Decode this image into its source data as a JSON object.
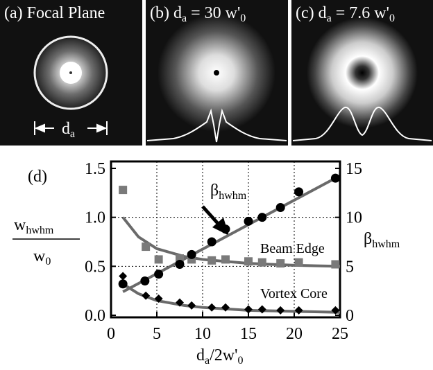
{
  "panels": [
    {
      "label": "(a)",
      "text": "Focal Plane",
      "da": "d",
      "da_sub": "a"
    },
    {
      "label": "(b)",
      "lhs": "d",
      "lhs_sub": "a",
      "rhs": "= 30 w'",
      "rhs_sub": "0"
    },
    {
      "label": "(c)",
      "lhs": "d",
      "lhs_sub": "a",
      "rhs": "= 7.6 w'",
      "rhs_sub": "0"
    }
  ],
  "chart_data": {
    "type": "scatter",
    "panel_label": "(d)",
    "y_label": {
      "numerator": "w",
      "numerator_sub": "hwhm",
      "denominator": "w",
      "denominator_sub": "0"
    },
    "y2_label": {
      "main": "β",
      "sub": "hwhm"
    },
    "x_label": {
      "main": "d",
      "sub": "a",
      "rest": "/2w'",
      "rest_sub": "0"
    },
    "xlim": [
      0,
      25
    ],
    "xticks": [
      0,
      5,
      10,
      15,
      20,
      25
    ],
    "ylim": [
      0,
      1.5
    ],
    "yticks": [
      {
        "value": 0,
        "label": "0.0"
      },
      {
        "value": 0.5,
        "label": "0.5"
      },
      {
        "value": 1,
        "label": "1.0"
      },
      {
        "value": 1.5,
        "label": "1.5"
      }
    ],
    "y2lim": [
      0,
      15
    ],
    "y2ticks": [
      0,
      5,
      10,
      15
    ],
    "grid": true,
    "series": [
      {
        "marker": "square",
        "color": "#7a7a7a",
        "x": [
          1.3,
          3.8,
          5.2,
          7.5,
          8.8,
          11,
          12.5,
          15,
          16.5,
          18.5,
          20.5,
          24.5
        ],
        "values": [
          1.28,
          0.7,
          0.57,
          0.58,
          0.57,
          0.56,
          0.57,
          0.55,
          0.54,
          0.53,
          0.54,
          0.52
        ]
      },
      {
        "marker": "circle",
        "color": "#000000",
        "axis": "y2",
        "x": [
          1.3,
          3.7,
          5.2,
          7.5,
          8.8,
          11,
          12.5,
          15,
          16.5,
          18.5,
          20.5,
          24.5
        ],
        "values": [
          3.2,
          3.5,
          4.2,
          5.2,
          6.2,
          7.5,
          8.8,
          9.6,
          10,
          11,
          12.6,
          14
        ]
      },
      {
        "marker": "diamond",
        "color": "#000000",
        "x": [
          1.3,
          3.8,
          5.2,
          7.5,
          8.8,
          11,
          12.5,
          15,
          16.5,
          18.5,
          20.5,
          24.5
        ],
        "values": [
          0.4,
          0.2,
          0.17,
          0.13,
          0.1,
          0.08,
          0.08,
          0.06,
          0.06,
          0.05,
          0.05,
          0.05
        ]
      }
    ],
    "fits": [
      {
        "color": "#6a6a6a",
        "x": [
          1.3,
          3,
          5,
          8,
          10,
          15,
          20,
          25
        ],
        "values": [
          1.0,
          0.8,
          0.68,
          0.6,
          0.57,
          0.53,
          0.51,
          0.5
        ]
      },
      {
        "color": "#6a6a6a",
        "x": [
          1.3,
          3,
          5,
          8,
          10,
          15,
          20,
          25
        ],
        "values": [
          0.32,
          0.22,
          0.15,
          0.1,
          0.08,
          0.05,
          0.04,
          0.03
        ]
      },
      {
        "color": "#6a6a6a",
        "axis": "y2",
        "x": [
          1.3,
          24.5
        ],
        "values": [
          2.4,
          14
        ]
      }
    ],
    "annotations": [
      {
        "main": "β",
        "sub": "hwhm"
      },
      {
        "text": "Beam Edge"
      },
      {
        "text": "Vortex Core"
      }
    ]
  }
}
